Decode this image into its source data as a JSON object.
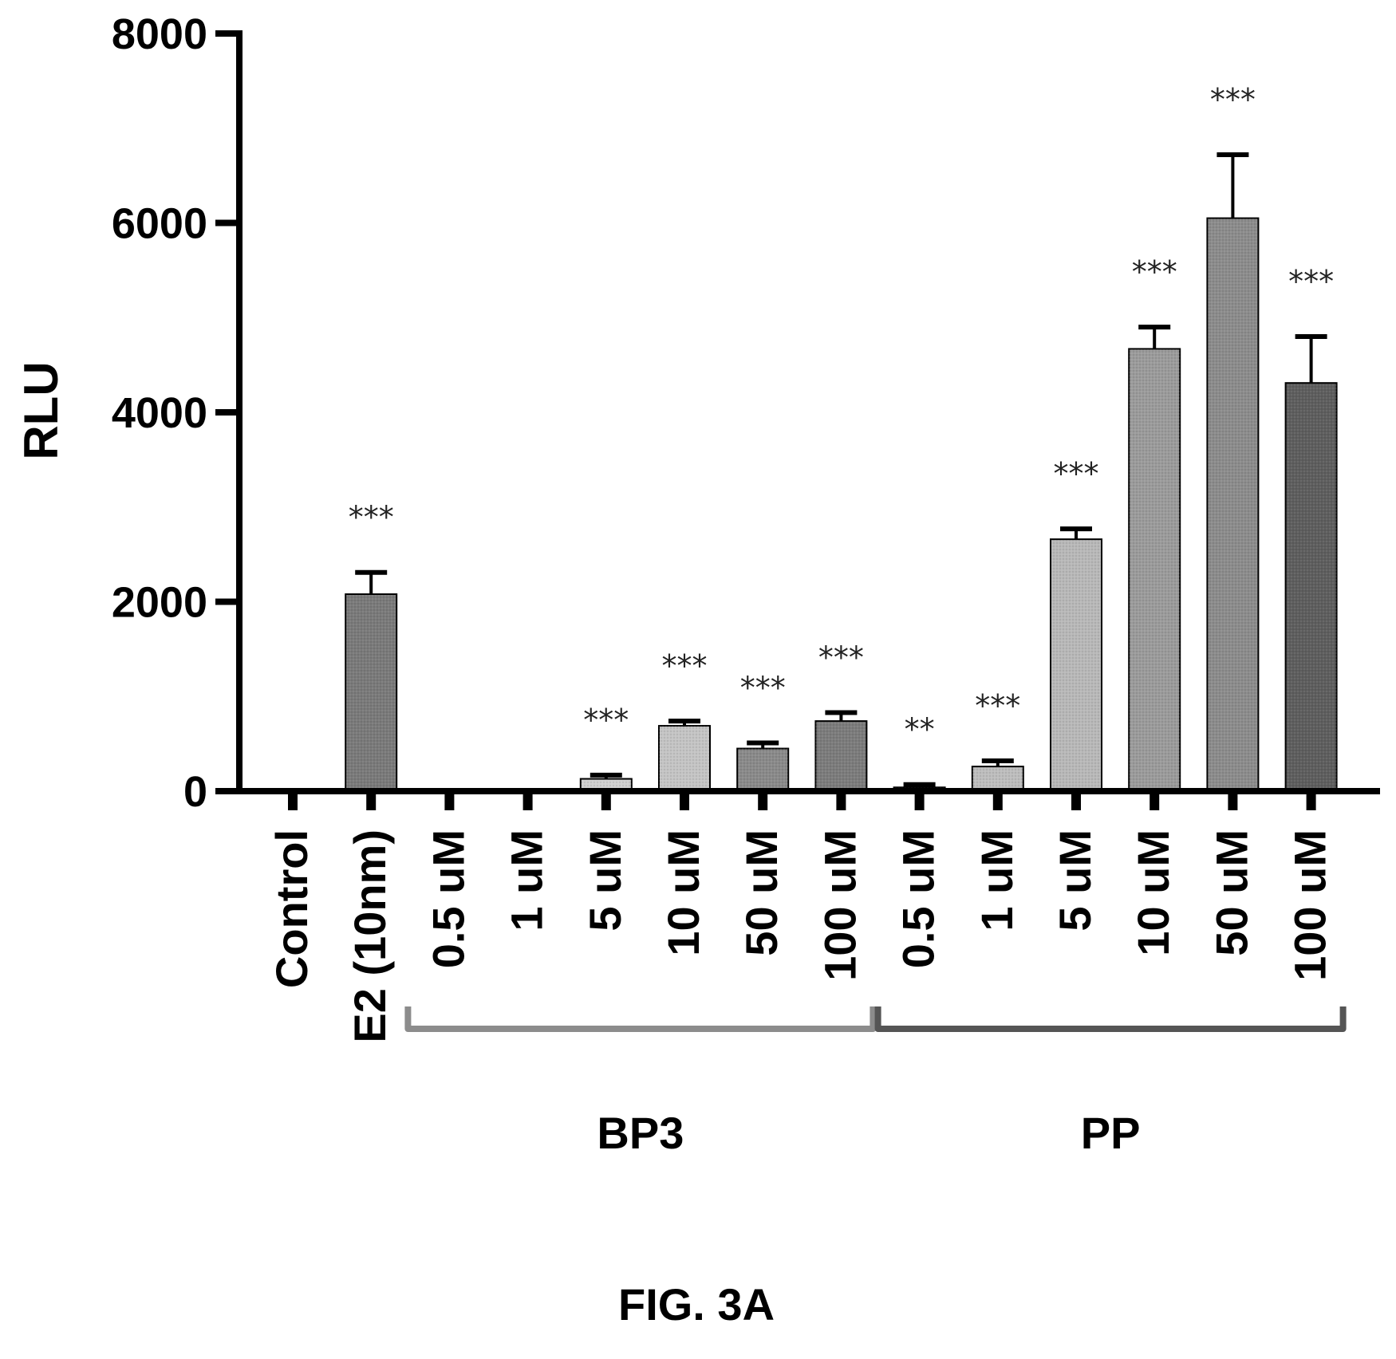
{
  "chart_data": {
    "type": "bar",
    "ylabel": "RLU",
    "ylim": [
      0,
      8000
    ],
    "yticks": [
      "0",
      "2000",
      "4000",
      "6000",
      "8000"
    ],
    "categories": [
      "Control",
      "E2 (10nm)",
      "0.5 uM",
      "1 uM",
      "5 uM",
      "10 uM",
      "50 uM",
      "100 uM",
      "0.5 uM",
      "1 uM",
      "5 uM",
      "10 uM",
      "50 uM",
      "100 uM"
    ],
    "values": [
      0,
      2080,
      0,
      0,
      130,
      690,
      450,
      740,
      40,
      260,
      2660,
      4670,
      6050,
      4310
    ],
    "errors": [
      0,
      230,
      0,
      0,
      40,
      50,
      60,
      90,
      30,
      60,
      110,
      230,
      670,
      490
    ],
    "significance": [
      "",
      "***",
      "",
      "",
      "***",
      "***",
      "***",
      "***",
      "**",
      "***",
      "***",
      "***",
      "***",
      "***"
    ],
    "bar_colors": [
      "#6e6e6e",
      "#7a7a7a",
      "#909090",
      "#a0a0a0",
      "#d0d0d0",
      "#c4c4c4",
      "#8a8a8a",
      "#7c7c7c",
      "#555555",
      "#bdbdbd",
      "#b8b8b8",
      "#9b9b9b",
      "#8c8c8c",
      "#5e5e5e"
    ],
    "groups": [
      {
        "label": "BP3",
        "from": 2,
        "to": 7,
        "color": "#8c8c8c"
      },
      {
        "label": "PP",
        "from": 8,
        "to": 13,
        "color": "#555555"
      }
    ]
  },
  "caption": "FIG. 3A"
}
